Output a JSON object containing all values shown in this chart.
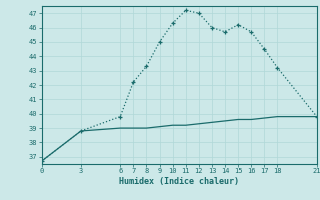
{
  "xlabel": "Humidex (Indice chaleur)",
  "ylabel": "",
  "bg_color": "#cce8e8",
  "grid_color": "#b0d8d8",
  "line1_x": [
    0,
    3,
    6,
    7,
    8,
    9,
    10,
    11,
    12,
    13,
    14,
    15,
    16,
    17,
    18,
    21
  ],
  "line1_y": [
    36.7,
    38.8,
    39.8,
    42.2,
    43.3,
    45.0,
    46.3,
    47.2,
    47.0,
    46.0,
    45.7,
    46.2,
    45.7,
    44.5,
    43.2,
    39.8
  ],
  "line2_x": [
    0,
    3,
    6,
    7,
    8,
    9,
    10,
    11,
    12,
    13,
    14,
    15,
    16,
    17,
    18,
    21
  ],
  "line2_y": [
    36.7,
    38.8,
    39.0,
    39.0,
    39.0,
    39.1,
    39.2,
    39.2,
    39.3,
    39.4,
    39.5,
    39.6,
    39.6,
    39.7,
    39.8,
    39.8
  ],
  "line_color": "#1a6b6b",
  "ylim": [
    36.5,
    47.5
  ],
  "yticks": [
    37,
    38,
    39,
    40,
    41,
    42,
    43,
    44,
    45,
    46,
    47
  ],
  "xticks": [
    0,
    3,
    6,
    7,
    8,
    9,
    10,
    11,
    12,
    13,
    14,
    15,
    16,
    17,
    18,
    21
  ],
  "xlim": [
    0,
    21
  ],
  "figsize": [
    3.2,
    2.0
  ],
  "dpi": 100
}
